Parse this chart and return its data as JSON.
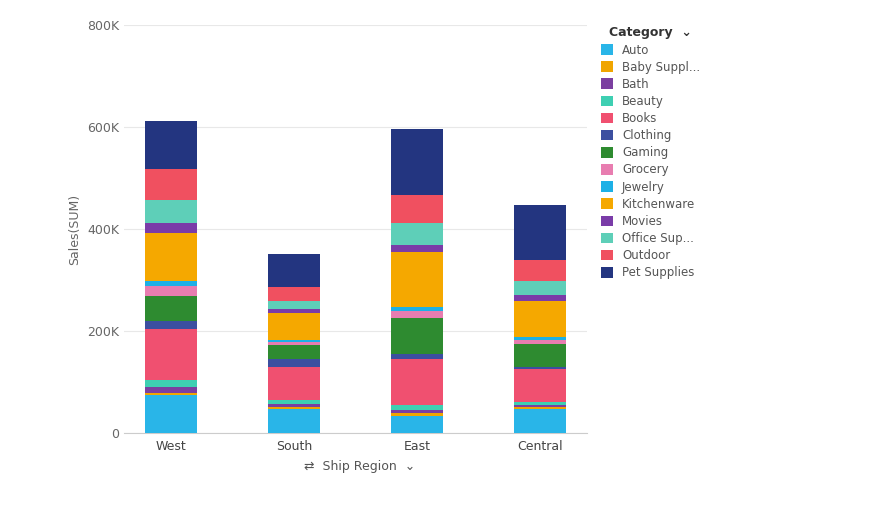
{
  "regions": [
    "West",
    "South",
    "East",
    "Central"
  ],
  "legend_labels": [
    "Auto",
    "Baby Suppl...",
    "Bath",
    "Beauty",
    "Books",
    "Clothing",
    "Gaming",
    "Grocery",
    "Jewelry",
    "Kitchenware",
    "Movies",
    "Office Sup...",
    "Outdoor",
    "Pet Supplies"
  ],
  "legend_colors": [
    "#29b5e8",
    "#f0a500",
    "#7b3fa0",
    "#3ecfb2",
    "#f05070",
    "#3c4fa0",
    "#2e8b30",
    "#e87db0",
    "#1db0e6",
    "#f5a800",
    "#7a3ca8",
    "#5ecfb8",
    "#f05060",
    "#233580"
  ],
  "background_color": "#ffffff",
  "ylabel": "Sales(SUM)",
  "ylim": [
    0,
    800000
  ],
  "yticks": [
    0,
    200000,
    400000,
    600000,
    800000
  ],
  "ytick_labels": [
    "0",
    "200K",
    "400K",
    "600K",
    "800K"
  ],
  "grid_color": "#e8e8e8",
  "values": {
    "West": [
      75000,
      5000,
      10000,
      15000,
      100000,
      15000,
      50000,
      18000,
      10000,
      95000,
      20000,
      45000,
      60000,
      95000
    ],
    "South": [
      47000,
      5000,
      6000,
      8000,
      65000,
      15000,
      28000,
      5000,
      5000,
      52000,
      8000,
      15000,
      27000,
      65000
    ],
    "East": [
      35000,
      5000,
      5000,
      10000,
      90000,
      10000,
      72000,
      12000,
      8000,
      108000,
      15000,
      42000,
      55000,
      130000
    ],
    "Central": [
      48000,
      3000,
      5000,
      5000,
      65000,
      5000,
      45000,
      8000,
      5000,
      70000,
      12000,
      28000,
      40000,
      108000
    ]
  },
  "figure_width": 8.9,
  "figure_height": 5.14,
  "dpi": 100
}
